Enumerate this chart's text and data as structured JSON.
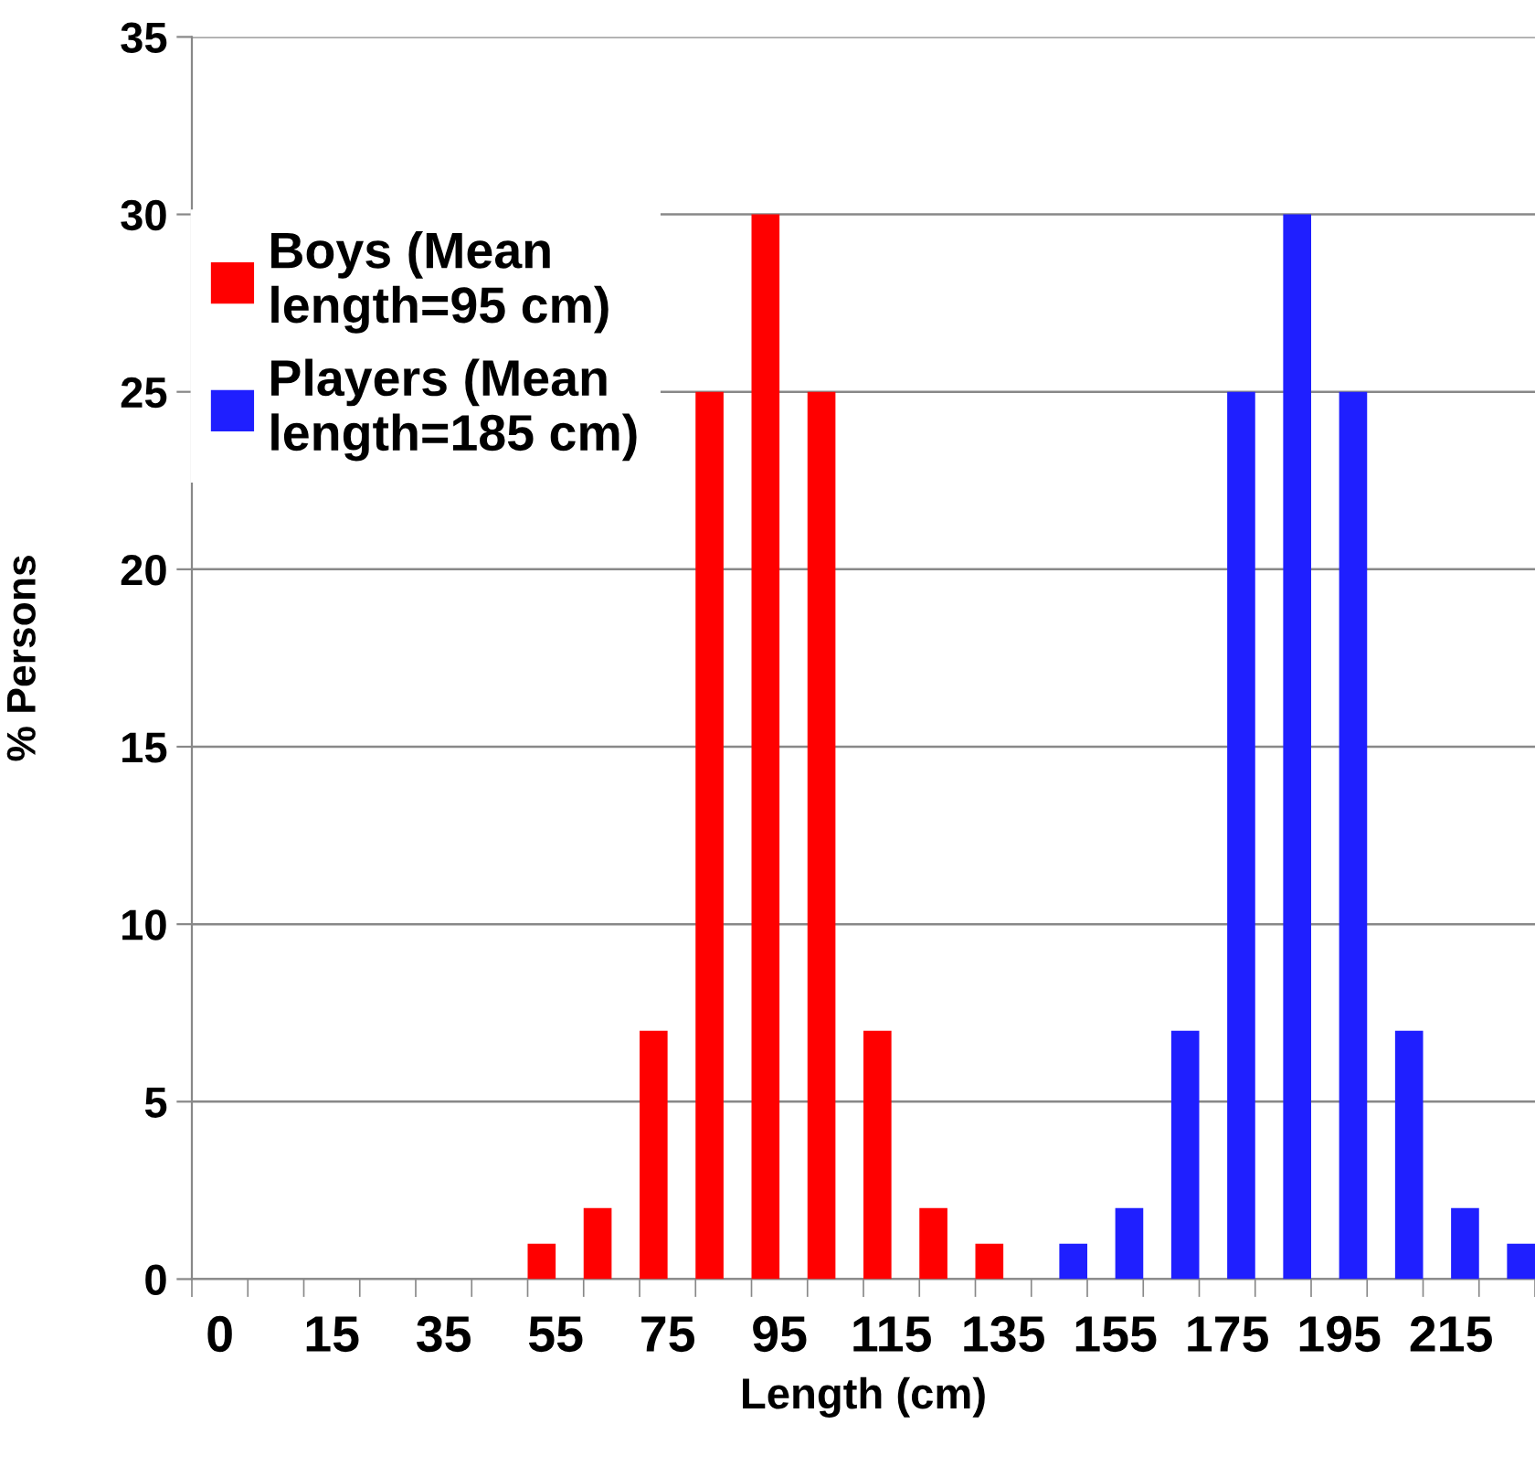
{
  "chart_data": {
    "type": "bar",
    "xlabel": "Length (cm)",
    "ylabel": "% Persons",
    "categories": [
      "0",
      null,
      "15",
      null,
      "35",
      null,
      "55",
      null,
      "75",
      null,
      "95",
      null,
      "115",
      null,
      "135",
      null,
      "155",
      null,
      "175",
      null,
      "195",
      null,
      "215",
      null
    ],
    "series": [
      {
        "name": "Boys (Mean\nlength=95 cm)",
        "color": "#ff0000",
        "values": [
          0,
          0,
          0,
          0,
          0,
          0,
          1,
          2,
          7,
          25,
          30,
          25,
          7,
          2,
          1,
          0,
          0,
          0,
          0,
          0,
          0,
          0,
          0,
          0
        ]
      },
      {
        "name": "Players (Mean\nlength=185 cm)",
        "color": "#1f1fff",
        "values": [
          0,
          0,
          0,
          0,
          0,
          0,
          0,
          0,
          0,
          0,
          0,
          0,
          0,
          0,
          0,
          1,
          2,
          7,
          25,
          30,
          25,
          7,
          2,
          1
        ]
      }
    ],
    "ylim": [
      0,
      35
    ],
    "yticks": [
      0,
      5,
      10,
      15,
      20,
      25,
      30,
      35
    ],
    "grid": "y",
    "legend": "top left"
  }
}
